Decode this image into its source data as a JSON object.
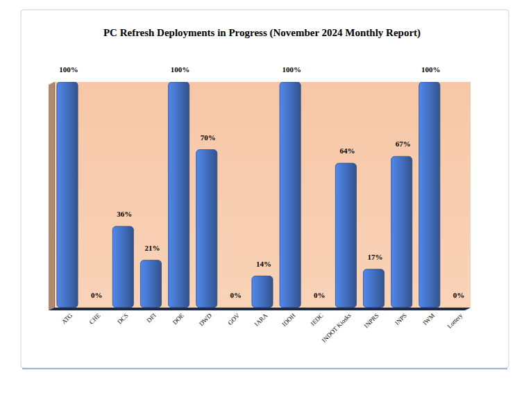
{
  "chart_data": {
    "type": "bar",
    "title": "PC Refresh Deployments in Progress (November 2024 Monthly Report)",
    "categories": [
      "ATG",
      "CHE",
      "DCS",
      "DFI",
      "DOE",
      "DWD",
      "GOV",
      "IARA",
      "IDOH",
      "IEDC",
      "INDOT Kiosks",
      "INPRS",
      "INPS",
      "IWM",
      "Lottery"
    ],
    "values": [
      100,
      0,
      36,
      21,
      100,
      70,
      0,
      14,
      100,
      0,
      64,
      17,
      67,
      100,
      0
    ],
    "value_labels": [
      "100%",
      "0%",
      "36%",
      "21%",
      "100%",
      "70%",
      "0%",
      "14%",
      "100%",
      "0%",
      "64%",
      "17%",
      "67%",
      "100%",
      "0%"
    ],
    "color": "#4472c4",
    "ylim": [
      0,
      100
    ],
    "data_labels": true,
    "tick_labels": "x",
    "grid": false
  }
}
